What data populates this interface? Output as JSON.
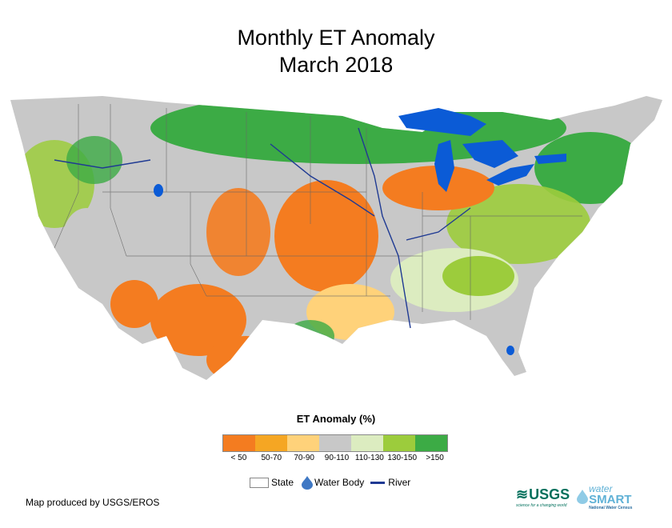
{
  "title_line1": "Monthly ET Anomaly",
  "title_line2": "March 2018",
  "legend": {
    "title": "ET Anomaly (%)",
    "classes": [
      {
        "label": "< 50",
        "color": "#f47c20"
      },
      {
        "label": "50-70",
        "color": "#f5a623"
      },
      {
        "label": "70-90",
        "color": "#ffd27a"
      },
      {
        "label": "90-110",
        "color": "#c8c8c8"
      },
      {
        "label": "110-130",
        "color": "#dcecc0"
      },
      {
        "label": "130-150",
        "color": "#9ccc3c"
      },
      {
        "label": ">150",
        "color": "#3cab45"
      }
    ],
    "state_label": "State",
    "water_label": "Water Body",
    "river_label": "River"
  },
  "credit": "Map produced by USGS/EROS",
  "logos": {
    "usgs": "USGS",
    "usgs_tagline": "science for a changing world",
    "water": "water",
    "smart": "SMART",
    "ws_tagline": "National Water Census"
  },
  "colors": {
    "water": "#0b5bd6",
    "river": "#1f3a93",
    "state_line": "#666666"
  }
}
